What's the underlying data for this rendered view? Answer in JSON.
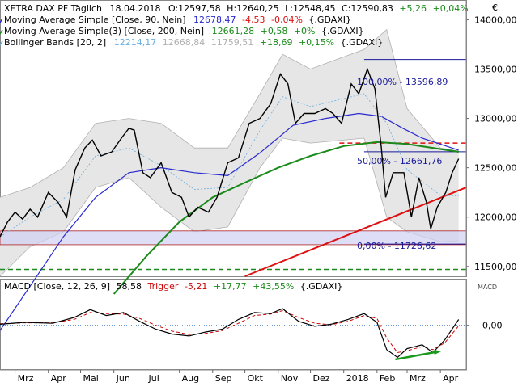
{
  "header": {
    "line1": {
      "prefix": "XETRA DAX PF Täglich",
      "date": "18.04.2018",
      "o": "O:12597,58",
      "h": "H:12640,25",
      "l": "L:12548,45",
      "c": "C:12590,83",
      "chg": "+5,26",
      "pct": "+0,04%"
    },
    "line2": {
      "label": "Moving Average Simple [Close, 90, Nein]",
      "value": "12678,47",
      "chg": "-4,53",
      "pct": "-0,04%",
      "src": "{.GDAXI}"
    },
    "line3": {
      "label": "Moving Average Simple(3) [Close, 200, Nein]",
      "value": "12661,28",
      "chg": "+0,58",
      "pct": "+0%",
      "src": "{.GDAXI}"
    },
    "line4": {
      "label": "Bollinger Bands [20, 2]",
      "v1": "12214,17",
      "v2": "12668,84",
      "v3": "11759,51",
      "chg": "+18,69",
      "pct": "+0,15%",
      "src": "{.GDAXI}"
    }
  },
  "annotations": {
    "fib100": "100,00% - 13596,89",
    "fib50": "50,00% - 12661,76",
    "fib0": "0,00% - 11726,62"
  },
  "macd_header": {
    "label": "MACD [Close, 12, 26, 9]",
    "value": "58,58",
    "trigger_label": "Trigger",
    "trigger_value": "-5,21",
    "chg": "+17,77",
    "pct": "+43,55%",
    "src": "{.GDAXI}"
  },
  "macd_axis_title": "MACD",
  "corner_mark": "€",
  "colors": {
    "price": "#000000",
    "ma90": "#2a2ad0",
    "ma200": "#1a8a1a",
    "bollinger_mid": "#6aaee0",
    "bollinger_fill": "#e6e6e6",
    "bollinger_edge": "#b0b0b0",
    "trend": "#e01010",
    "support_band": "#d0d0f4",
    "fib_line": "#1a1a9a",
    "red_dash": "#e01010",
    "green_dash": "#1a8a1a",
    "macd": "#000000",
    "trigger": "#cc0000",
    "arrow": "#1a9a1a"
  },
  "chart_data": [
    {
      "type": "line",
      "title": "XETRA DAX PF Täglich",
      "yticks": [
        "14000,00",
        "13500,00",
        "13000,00",
        "12500,00",
        "12000,00",
        "11500,00"
      ],
      "ytick_values": [
        14000,
        13500,
        13000,
        12500,
        12000,
        11500
      ],
      "ylim": [
        11400,
        14200
      ],
      "x_ticks": [
        "Mrz",
        "Apr",
        "Mai",
        "Jun",
        "Jul",
        "Aug",
        "Sep",
        "Okt",
        "Nov",
        "Dez",
        "2018",
        "Feb",
        "Mrz",
        "Apr"
      ],
      "x_tick_dates": [
        "2017-03-01",
        "2017-04-01",
        "2017-05-01",
        "2017-06-01",
        "2017-07-01",
        "2017-08-01",
        "2017-09-01",
        "2017-10-01",
        "2017-11-01",
        "2017-12-01",
        "2018-01-01",
        "2018-02-01",
        "2018-03-01",
        "2018-04-01"
      ],
      "xlim": [
        "2017-02-15",
        "2018-04-25"
      ],
      "series": [
        {
          "name": "XETRA DAX PF Täglich",
          "key": "price",
          "points": [
            [
              "2017-02-15",
              11800
            ],
            [
              "2017-02-22",
              11950
            ],
            [
              "2017-03-01",
              12050
            ],
            [
              "2017-03-08",
              11980
            ],
            [
              "2017-03-15",
              12080
            ],
            [
              "2017-03-22",
              12000
            ],
            [
              "2017-04-01",
              12250
            ],
            [
              "2017-04-10",
              12150
            ],
            [
              "2017-04-18",
              12000
            ],
            [
              "2017-04-26",
              12480
            ],
            [
              "2017-05-05",
              12700
            ],
            [
              "2017-05-12",
              12780
            ],
            [
              "2017-05-20",
              12620
            ],
            [
              "2017-05-30",
              12660
            ],
            [
              "2017-06-08",
              12800
            ],
            [
              "2017-06-15",
              12900
            ],
            [
              "2017-06-20",
              12880
            ],
            [
              "2017-06-28",
              12450
            ],
            [
              "2017-07-05",
              12400
            ],
            [
              "2017-07-15",
              12550
            ],
            [
              "2017-07-25",
              12250
            ],
            [
              "2017-08-03",
              12200
            ],
            [
              "2017-08-10",
              12000
            ],
            [
              "2017-08-18",
              12100
            ],
            [
              "2017-08-28",
              12050
            ],
            [
              "2017-09-05",
              12200
            ],
            [
              "2017-09-15",
              12550
            ],
            [
              "2017-09-25",
              12600
            ],
            [
              "2017-10-05",
              12950
            ],
            [
              "2017-10-15",
              13000
            ],
            [
              "2017-10-25",
              13150
            ],
            [
              "2017-11-03",
              13450
            ],
            [
              "2017-11-10",
              13350
            ],
            [
              "2017-11-17",
              12950
            ],
            [
              "2017-11-25",
              13050
            ],
            [
              "2017-12-05",
              13050
            ],
            [
              "2017-12-15",
              13100
            ],
            [
              "2017-12-22",
              13050
            ],
            [
              "2017-12-30",
              12950
            ],
            [
              "2018-01-08",
              13350
            ],
            [
              "2018-01-15",
              13250
            ],
            [
              "2018-01-23",
              13500
            ],
            [
              "2018-01-30",
              13300
            ],
            [
              "2018-02-05",
              12700
            ],
            [
              "2018-02-09",
              12200
            ],
            [
              "2018-02-16",
              12450
            ],
            [
              "2018-02-26",
              12450
            ],
            [
              "2018-03-05",
              12000
            ],
            [
              "2018-03-12",
              12400
            ],
            [
              "2018-03-19",
              12150
            ],
            [
              "2018-03-23",
              11880
            ],
            [
              "2018-03-29",
              12100
            ],
            [
              "2018-04-06",
              12250
            ],
            [
              "2018-04-12",
              12450
            ],
            [
              "2018-04-18",
              12591
            ]
          ]
        },
        {
          "name": "Moving Average Simple [Close, 90, Nein]",
          "key": "ma90",
          "points": [
            [
              "2017-02-15",
              10850
            ],
            [
              "2017-03-15",
              11300
            ],
            [
              "2017-04-15",
              11800
            ],
            [
              "2017-05-15",
              12200
            ],
            [
              "2017-06-15",
              12450
            ],
            [
              "2017-07-15",
              12500
            ],
            [
              "2017-08-15",
              12450
            ],
            [
              "2017-09-15",
              12420
            ],
            [
              "2017-10-15",
              12650
            ],
            [
              "2017-11-15",
              12930
            ],
            [
              "2017-12-15",
              13000
            ],
            [
              "2018-01-15",
              13050
            ],
            [
              "2018-02-05",
              13020
            ],
            [
              "2018-02-25",
              12900
            ],
            [
              "2018-03-15",
              12800
            ],
            [
              "2018-04-18",
              12678
            ]
          ]
        },
        {
          "name": "Moving Average Simple(3) [Close, 200, Nein]",
          "key": "ma200",
          "points": [
            [
              "2017-06-01",
              11220
            ],
            [
              "2017-07-01",
              11600
            ],
            [
              "2017-08-01",
              11950
            ],
            [
              "2017-09-01",
              12200
            ],
            [
              "2017-10-01",
              12350
            ],
            [
              "2017-11-01",
              12500
            ],
            [
              "2017-12-01",
              12620
            ],
            [
              "2018-01-01",
              12720
            ],
            [
              "2018-02-01",
              12760
            ],
            [
              "2018-03-01",
              12740
            ],
            [
              "2018-04-18",
              12661
            ]
          ]
        },
        {
          "name": "Bollinger Bands [20, 2]",
          "key": "bollinger",
          "points_upper": [
            [
              "2017-02-15",
              12200
            ],
            [
              "2017-03-15",
              12300
            ],
            [
              "2017-04-15",
              12500
            ],
            [
              "2017-05-15",
              12950
            ],
            [
              "2017-06-15",
              13000
            ],
            [
              "2017-07-15",
              12950
            ],
            [
              "2017-08-15",
              12700
            ],
            [
              "2017-09-15",
              12700
            ],
            [
              "2017-10-15",
              13250
            ],
            [
              "2017-11-05",
              13650
            ],
            [
              "2017-12-01",
              13500
            ],
            [
              "2018-01-20",
              13700
            ],
            [
              "2018-02-10",
              13900
            ],
            [
              "2018-03-01",
              13100
            ],
            [
              "2018-04-01",
              12700
            ],
            [
              "2018-04-18",
              12669
            ]
          ],
          "points_lower": [
            [
              "2017-02-15",
              11400
            ],
            [
              "2017-03-15",
              11700
            ],
            [
              "2017-04-15",
              11850
            ],
            [
              "2017-05-15",
              12300
            ],
            [
              "2017-06-15",
              12400
            ],
            [
              "2017-07-15",
              12100
            ],
            [
              "2017-08-15",
              11850
            ],
            [
              "2017-09-15",
              11900
            ],
            [
              "2017-10-15",
              12500
            ],
            [
              "2017-11-05",
              12800
            ],
            [
              "2017-12-01",
              12750
            ],
            [
              "2018-01-20",
              12800
            ],
            [
              "2018-02-10",
              12000
            ],
            [
              "2018-03-01",
              11850
            ],
            [
              "2018-04-01",
              11750
            ],
            [
              "2018-04-18",
              11760
            ]
          ],
          "points_mid": [
            [
              "2017-02-15",
              11800
            ],
            [
              "2017-03-15",
              12000
            ],
            [
              "2017-04-15",
              12180
            ],
            [
              "2017-05-15",
              12620
            ],
            [
              "2017-06-15",
              12700
            ],
            [
              "2017-07-15",
              12520
            ],
            [
              "2017-08-15",
              12280
            ],
            [
              "2017-09-15",
              12300
            ],
            [
              "2017-10-15",
              12880
            ],
            [
              "2017-11-05",
              13220
            ],
            [
              "2017-12-01",
              13120
            ],
            [
              "2018-01-20",
              13250
            ],
            [
              "2018-02-10",
              12950
            ],
            [
              "2018-03-01",
              12480
            ],
            [
              "2018-04-01",
              12220
            ],
            [
              "2018-04-18",
              12214
            ]
          ]
        }
      ],
      "levels": {
        "fib100": 13596.89,
        "fib50": 12661.76,
        "fib0": 11726.62,
        "red_dashed": 12750,
        "green_dashed": 11470,
        "support_band": [
          11720,
          11860
        ]
      },
      "trendline": [
        [
          "2017-10-01",
          11400
        ],
        [
          "2018-04-25",
          12300
        ]
      ]
    },
    {
      "type": "line",
      "title": "MACD [Close, 12, 26, 9]",
      "yticks": [
        "0,00"
      ],
      "ytick_values": [
        0
      ],
      "ylim": [
        -450,
        320
      ],
      "x_ticks": [
        "Mrz",
        "Apr",
        "Mai",
        "Jun",
        "Jul",
        "Aug",
        "Sep",
        "Okt",
        "Nov",
        "Dez",
        "2018",
        "Feb",
        "Mrz",
        "Apr"
      ],
      "series": [
        {
          "name": "MACD [Close, 12, 26, 9]",
          "key": "macd",
          "points": [
            [
              "2017-02-15",
              10
            ],
            [
              "2017-03-10",
              30
            ],
            [
              "2017-04-05",
              20
            ],
            [
              "2017-04-25",
              80
            ],
            [
              "2017-05-10",
              160
            ],
            [
              "2017-05-25",
              100
            ],
            [
              "2017-06-10",
              130
            ],
            [
              "2017-06-25",
              40
            ],
            [
              "2017-07-10",
              -40
            ],
            [
              "2017-07-25",
              -90
            ],
            [
              "2017-08-10",
              -110
            ],
            [
              "2017-08-25",
              -70
            ],
            [
              "2017-09-10",
              -40
            ],
            [
              "2017-09-25",
              60
            ],
            [
              "2017-10-10",
              130
            ],
            [
              "2017-10-25",
              120
            ],
            [
              "2017-11-05",
              170
            ],
            [
              "2017-11-20",
              40
            ],
            [
              "2017-12-05",
              -10
            ],
            [
              "2017-12-20",
              10
            ],
            [
              "2018-01-05",
              60
            ],
            [
              "2018-01-20",
              120
            ],
            [
              "2018-02-01",
              30
            ],
            [
              "2018-02-10",
              -250
            ],
            [
              "2018-02-20",
              -330
            ],
            [
              "2018-03-01",
              -240
            ],
            [
              "2018-03-15",
              -200
            ],
            [
              "2018-03-25",
              -280
            ],
            [
              "2018-04-05",
              -150
            ],
            [
              "2018-04-18",
              59
            ]
          ]
        },
        {
          "name": "Trigger",
          "key": "trigger",
          "points": [
            [
              "2017-02-15",
              15
            ],
            [
              "2017-03-10",
              25
            ],
            [
              "2017-04-05",
              25
            ],
            [
              "2017-04-25",
              60
            ],
            [
              "2017-05-10",
              130
            ],
            [
              "2017-05-25",
              120
            ],
            [
              "2017-06-10",
              115
            ],
            [
              "2017-06-25",
              70
            ],
            [
              "2017-07-10",
              0
            ],
            [
              "2017-07-25",
              -60
            ],
            [
              "2017-08-10",
              -95
            ],
            [
              "2017-08-25",
              -85
            ],
            [
              "2017-09-10",
              -55
            ],
            [
              "2017-09-25",
              20
            ],
            [
              "2017-10-10",
              100
            ],
            [
              "2017-10-25",
              115
            ],
            [
              "2017-11-05",
              150
            ],
            [
              "2017-11-20",
              80
            ],
            [
              "2017-12-05",
              20
            ],
            [
              "2017-12-20",
              5
            ],
            [
              "2018-01-05",
              40
            ],
            [
              "2018-01-20",
              100
            ],
            [
              "2018-02-01",
              70
            ],
            [
              "2018-02-10",
              -130
            ],
            [
              "2018-02-20",
              -280
            ],
            [
              "2018-03-01",
              -260
            ],
            [
              "2018-03-15",
              -220
            ],
            [
              "2018-03-25",
              -250
            ],
            [
              "2018-04-05",
              -180
            ],
            [
              "2018-04-18",
              -5
            ]
          ]
        }
      ],
      "arrow": [
        [
          "2018-02-18",
          -350
        ],
        [
          "2018-03-30",
          -270
        ]
      ]
    }
  ]
}
